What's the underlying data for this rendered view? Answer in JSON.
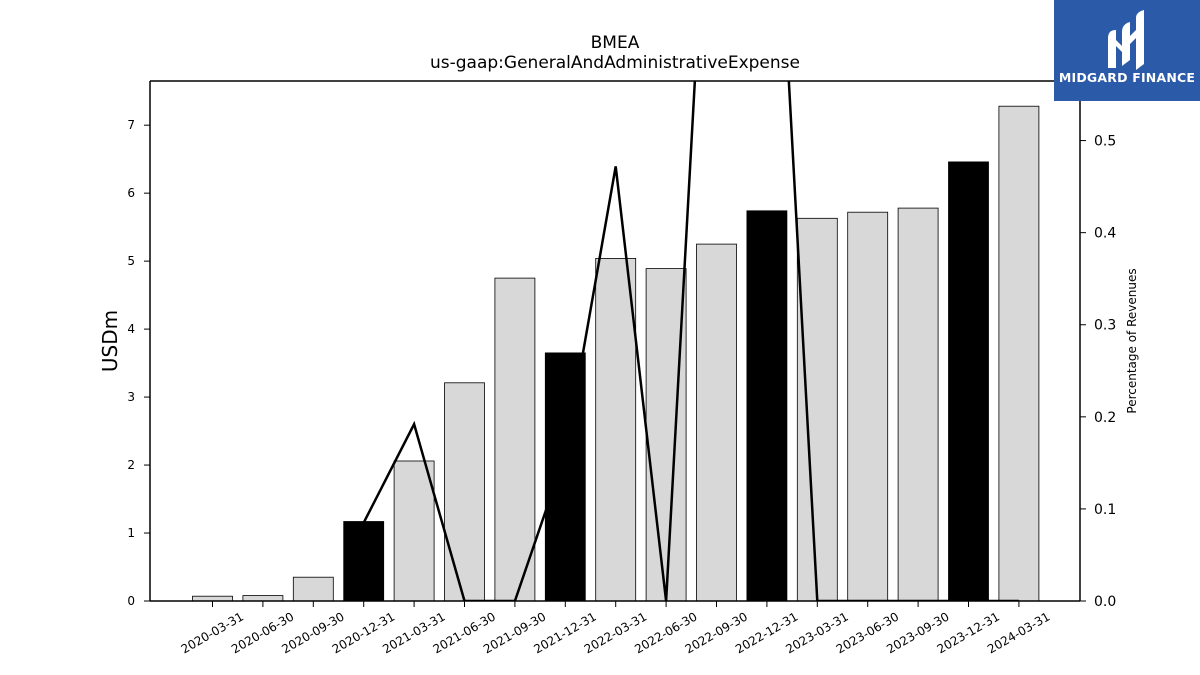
{
  "chart_data": {
    "type": "bar",
    "title": "BMEA",
    "subtitle": "us-gaap:GeneralAndAdministrativeExpense",
    "ylabel": "USDm",
    "y2label": "Percentage of Revenues",
    "categories": [
      "2020-03-31",
      "2020-06-30",
      "2020-09-30",
      "2020-12-31",
      "2021-03-31",
      "2021-06-30",
      "2021-09-30",
      "2021-12-31",
      "2022-03-31",
      "2022-06-30",
      "2022-09-30",
      "2022-12-31",
      "2023-03-31",
      "2023-06-30",
      "2023-09-30",
      "2023-12-31",
      "2024-03-31"
    ],
    "series": [
      {
        "type": "bar",
        "values": [
          0.07,
          0.08,
          0.35,
          1.17,
          2.06,
          3.21,
          4.75,
          3.65,
          5.04,
          4.89,
          5.25,
          5.74,
          5.63,
          5.72,
          5.78,
          6.46,
          7.28
        ],
        "fill_colors": [
          "#d8d8d8",
          "#d8d8d8",
          "#d8d8d8",
          "#000000",
          "#d8d8d8",
          "#d8d8d8",
          "#d8d8d8",
          "#000000",
          "#d8d8d8",
          "#d8d8d8",
          "#d8d8d8",
          "#000000",
          "#d8d8d8",
          "#d8d8d8",
          "#d8d8d8",
          "#000000",
          "#d8d8d8"
        ]
      },
      {
        "type": "line",
        "axis": "right",
        "values": [
          null,
          null,
          null,
          0.085,
          0.192,
          0.0,
          0.0,
          0.16,
          0.472,
          0.0,
          0.99,
          1.0,
          0.0,
          0.0,
          0.0,
          0.0,
          0.0
        ]
      }
    ],
    "ylim": [
      0,
      7.65
    ],
    "y2lim": [
      0,
      0.5
    ],
    "y2lim_full": [
      0,
      0.5647
    ],
    "yticks": [
      0,
      1,
      2,
      3,
      4,
      5,
      6,
      7
    ],
    "y2ticks": [
      0.0,
      0.1,
      0.2,
      0.3,
      0.4,
      0.5
    ],
    "y2tick_labels": [
      "0.0",
      "0.1",
      "0.2",
      "0.3",
      "0.4",
      "0.5"
    ],
    "grid": false,
    "legend": "none"
  },
  "logo": {
    "text": "MIDGARD FINANCE",
    "icon": "midgard-logo-icon",
    "color": "#2b5aa8"
  }
}
